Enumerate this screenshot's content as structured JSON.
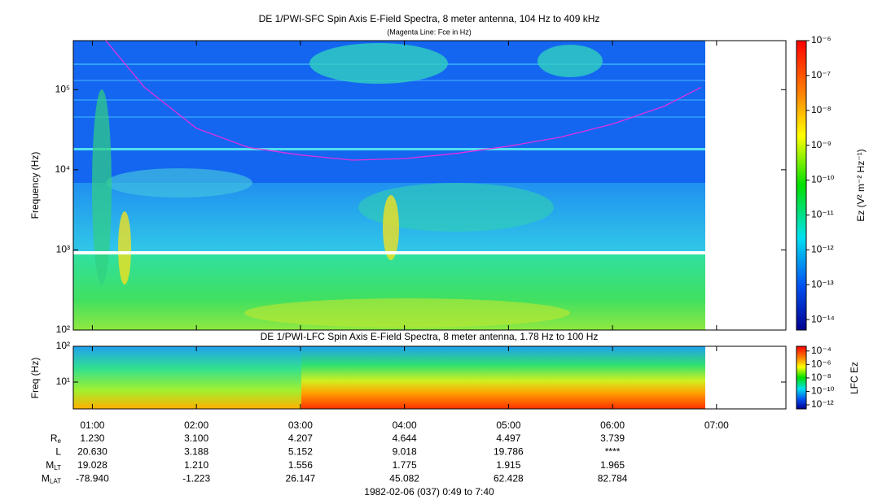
{
  "chart_data": [
    {
      "type": "spectrogram",
      "title": "DE 1/PWI-SFC  Spin Axis E-Field Spectra, 8 meter antenna, 104 Hz to 409 kHz",
      "subtitle": "(Magenta Line: Fce in Hz)",
      "ylabel": "Frequency (Hz)",
      "ylog": true,
      "ylim": [
        100,
        409000
      ],
      "yticks": [
        {
          "value": 100,
          "label": "10²"
        },
        {
          "value": 1000,
          "label": "10³"
        },
        {
          "value": 10000,
          "label": "10⁴"
        },
        {
          "value": 100000,
          "label": "10⁵"
        }
      ],
      "colorbar": {
        "label": "Ez (V² m⁻² Hz⁻¹)",
        "log": true,
        "lim": [
          5e-15,
          1e-06
        ],
        "ticks": [
          {
            "value": 1e-06,
            "label": "10⁻⁶"
          },
          {
            "value": 1e-07,
            "label": "10⁻⁷"
          },
          {
            "value": 1e-08,
            "label": "10⁻⁸"
          },
          {
            "value": 1e-09,
            "label": "10⁻⁹"
          },
          {
            "value": 1e-10,
            "label": "10⁻¹⁰"
          },
          {
            "value": 1e-11,
            "label": "10⁻¹¹"
          },
          {
            "value": 1e-12,
            "label": "10⁻¹²"
          },
          {
            "value": 1e-13,
            "label": "10⁻¹³"
          },
          {
            "value": 1e-14,
            "label": "10⁻¹⁴"
          }
        ]
      },
      "overlay": {
        "color": "#e030e0",
        "x": [
          1.13,
          1.5,
          2.0,
          2.5,
          3.0,
          3.5,
          4.0,
          4.5,
          5.0,
          5.5,
          6.0,
          6.5,
          6.85
        ],
        "values": [
          409000,
          107000,
          33000,
          19000,
          15300,
          13200,
          13800,
          16000,
          19700,
          25500,
          37200,
          62400,
          107000
        ]
      }
    },
    {
      "type": "spectrogram",
      "title": "DE 1/PWI-LFC  Spin Axis E-Field Spectra, 8 meter antenna, 1.78 Hz to 100 Hz",
      "ylabel": "Freq (Hz)",
      "ylog": true,
      "ylim": [
        1.78,
        100
      ],
      "yticks": [
        {
          "value": 10,
          "label": "10¹"
        },
        {
          "value": 100,
          "label": "10²"
        }
      ],
      "colorbar": {
        "label": "LFC Ez",
        "log": true,
        "lim": [
          2.5e-13,
          0.0005
        ],
        "ticks": [
          {
            "value": 0.0001,
            "label": "10⁻⁴"
          },
          {
            "value": 1e-06,
            "label": "10⁻⁶"
          },
          {
            "value": 1e-08,
            "label": "10⁻⁸"
          },
          {
            "value": 1e-10,
            "label": "10⁻¹⁰"
          },
          {
            "value": 1e-12,
            "label": "10⁻¹²"
          }
        ]
      }
    }
  ],
  "x_axis": {
    "xlim": [
      0.8167,
      7.6667
    ],
    "xticks": [
      {
        "value": 1,
        "label": "01:00"
      },
      {
        "value": 2,
        "label": "02:00"
      },
      {
        "value": 3,
        "label": "03:00"
      },
      {
        "value": 4,
        "label": "04:00"
      },
      {
        "value": 5,
        "label": "05:00"
      },
      {
        "value": 6,
        "label": "06:00"
      },
      {
        "value": 7,
        "label": "07:00"
      }
    ]
  },
  "ephemeris": {
    "rows": [
      {
        "name": "R",
        "sub": "e",
        "values": [
          "1.230",
          "3.100",
          "4.207",
          "4.644",
          "4.497",
          "3.739"
        ]
      },
      {
        "name": "L",
        "sub": null,
        "values": [
          "20.630",
          "3.188",
          "5.152",
          "9.018",
          "19.786",
          "****"
        ]
      },
      {
        "name": "M",
        "sub": "LT",
        "values": [
          "19.028",
          "1.210",
          "1.556",
          "1.775",
          "1.915",
          "1.965"
        ]
      },
      {
        "name": "M",
        "sub": "LAT",
        "values": [
          "-78.940",
          "-1.223",
          "26.147",
          "45.082",
          "62.428",
          "82.784"
        ]
      }
    ]
  },
  "footer": "1982-02-06 (037) 0:49 to 7:40"
}
